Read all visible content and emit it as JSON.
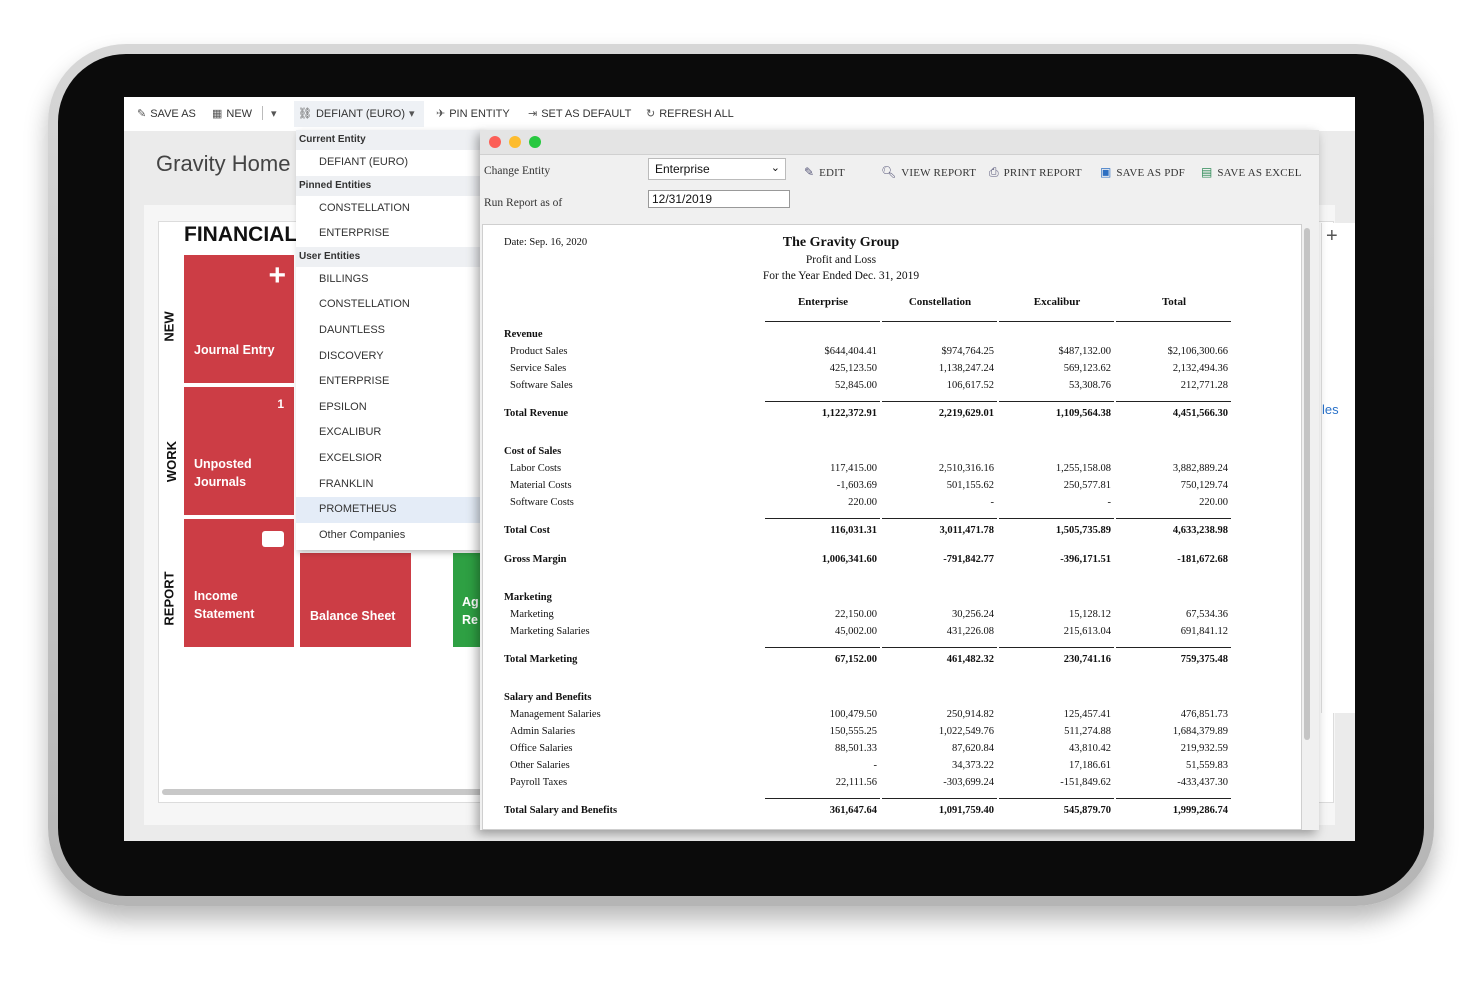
{
  "toolbar": {
    "save_as": "SAVE AS",
    "new": "NEW",
    "entity": "DEFIANT (EURO)",
    "pin_entity": "PIN ENTITY",
    "set_as_default": "SET AS DEFAULT",
    "refresh_all": "REFRESH ALL"
  },
  "home": {
    "title": "Gravity Home",
    "section_title": "FINANCIAL",
    "sections": [
      "NEW",
      "WORK",
      "REPORT"
    ],
    "tiles": {
      "journal_entry": "Journal Entry",
      "unposted_count": "1",
      "unposted_line1": "Unposted",
      "unposted_line2": "Journals",
      "income_line1": "Income",
      "income_line2": "Statement",
      "balance_sheet": "Balance Sheet",
      "green_line1": "Ag",
      "green_line2": "Re"
    },
    "right_plus": "+",
    "right_link": "les"
  },
  "entity_menu": {
    "current_header": "Current Entity",
    "current": "DEFIANT (EURO)",
    "pinned_header": "Pinned Entities",
    "pinned": [
      "CONSTELLATION",
      "ENTERPRISE"
    ],
    "user_header": "User Entities",
    "user": [
      "BILLINGS",
      "CONSTELLATION",
      "DAUNTLESS",
      "DISCOVERY",
      "ENTERPRISE",
      "EPSILON",
      "EXCALIBUR",
      "EXCELSIOR",
      "FRANKLIN",
      "PROMETHEUS",
      "Other Companies"
    ],
    "selected": "PROMETHEUS"
  },
  "report_window": {
    "change_entity_label": "Change Entity",
    "change_entity_value": "Enterprise",
    "run_as_of_label": "Run Report as of",
    "run_as_of_value": "12/31/2019",
    "buttons": {
      "edit": "EDIT",
      "view_report": "VIEW REPORT",
      "print_report": "PRINT REPORT",
      "save_pdf": "SAVE AS PDF",
      "save_excel": "SAVE AS EXCEL"
    },
    "colors": {
      "close": "#fc5f57",
      "minimize": "#fdbc2e",
      "maximize": "#28c840"
    }
  },
  "report": {
    "date": "Date: Sep. 16, 2020",
    "company": "The Gravity Group",
    "title": "Profit and Loss",
    "period": "For the Year Ended Dec. 31, 2019",
    "columns": [
      "Enterprise",
      "Constellation",
      "Excalibur",
      "Total"
    ],
    "rows": [
      {
        "type": "sec",
        "label": "Revenue",
        "values": []
      },
      {
        "type": "item",
        "label": "Product Sales",
        "values": [
          "$644,404.41",
          "$974,764.25",
          "$487,132.00",
          "$2,106,300.66"
        ]
      },
      {
        "type": "item",
        "label": "Service Sales",
        "values": [
          "425,123.50",
          "1,138,247.24",
          "569,123.62",
          "2,132,494.36"
        ]
      },
      {
        "type": "item",
        "label": "Software Sales",
        "values": [
          "52,845.00",
          "106,617.52",
          "53,308.76",
          "212,771.28"
        ]
      },
      {
        "type": "tot",
        "label": "Total Revenue",
        "values": [
          "1,122,372.91",
          "2,219,629.01",
          "1,109,564.38",
          "4,451,566.30"
        ]
      },
      {
        "type": "sec",
        "label": "Cost of Sales",
        "values": []
      },
      {
        "type": "item",
        "label": "Labor Costs",
        "values": [
          "117,415.00",
          "2,510,316.16",
          "1,255,158.08",
          "3,882,889.24"
        ]
      },
      {
        "type": "item",
        "label": "Material Costs",
        "values": [
          "-1,603.69",
          "501,155.62",
          "250,577.81",
          "750,129.74"
        ]
      },
      {
        "type": "item",
        "label": "Software Costs",
        "values": [
          "220.00",
          "-",
          "-",
          "220.00"
        ]
      },
      {
        "type": "tot",
        "label": "Total Cost",
        "values": [
          "116,031.31",
          "3,011,471.78",
          "1,505,735.89",
          "4,633,238.98"
        ]
      },
      {
        "type": "tot",
        "label": "Gross Margin",
        "values": [
          "1,006,341.60",
          "-791,842.77",
          "-396,171.51",
          "-181,672.68"
        ]
      },
      {
        "type": "sec",
        "label": "Marketing",
        "values": []
      },
      {
        "type": "item",
        "label": "Marketing",
        "values": [
          "22,150.00",
          "30,256.24",
          "15,128.12",
          "67,534.36"
        ]
      },
      {
        "type": "item",
        "label": "Marketing Salaries",
        "values": [
          "45,002.00",
          "431,226.08",
          "215,613.04",
          "691,841.12"
        ]
      },
      {
        "type": "tot",
        "label": "Total Marketing",
        "values": [
          "67,152.00",
          "461,482.32",
          "230,741.16",
          "759,375.48"
        ]
      },
      {
        "type": "sec",
        "label": "Salary and Benefits",
        "values": []
      },
      {
        "type": "item",
        "label": "Management Salaries",
        "values": [
          "100,479.50",
          "250,914.82",
          "125,457.41",
          "476,851.73"
        ]
      },
      {
        "type": "item",
        "label": "Admin Salaries",
        "values": [
          "150,555.25",
          "1,022,549.76",
          "511,274.88",
          "1,684,379.89"
        ]
      },
      {
        "type": "item",
        "label": "Office Salaries",
        "values": [
          "88,501.33",
          "87,620.84",
          "43,810.42",
          "219,932.59"
        ]
      },
      {
        "type": "item",
        "label": "Other Salaries",
        "values": [
          "-",
          "34,373.22",
          "17,186.61",
          "51,559.83"
        ]
      },
      {
        "type": "item",
        "label": "Payroll Taxes",
        "values": [
          "22,111.56",
          "-303,699.24",
          "-151,849.62",
          "-433,437.30"
        ]
      },
      {
        "type": "tot",
        "label": "Total Salary and Benefits",
        "values": [
          "361,647.64",
          "1,091,759.40",
          "545,879.70",
          "1,999,286.74"
        ]
      }
    ]
  }
}
